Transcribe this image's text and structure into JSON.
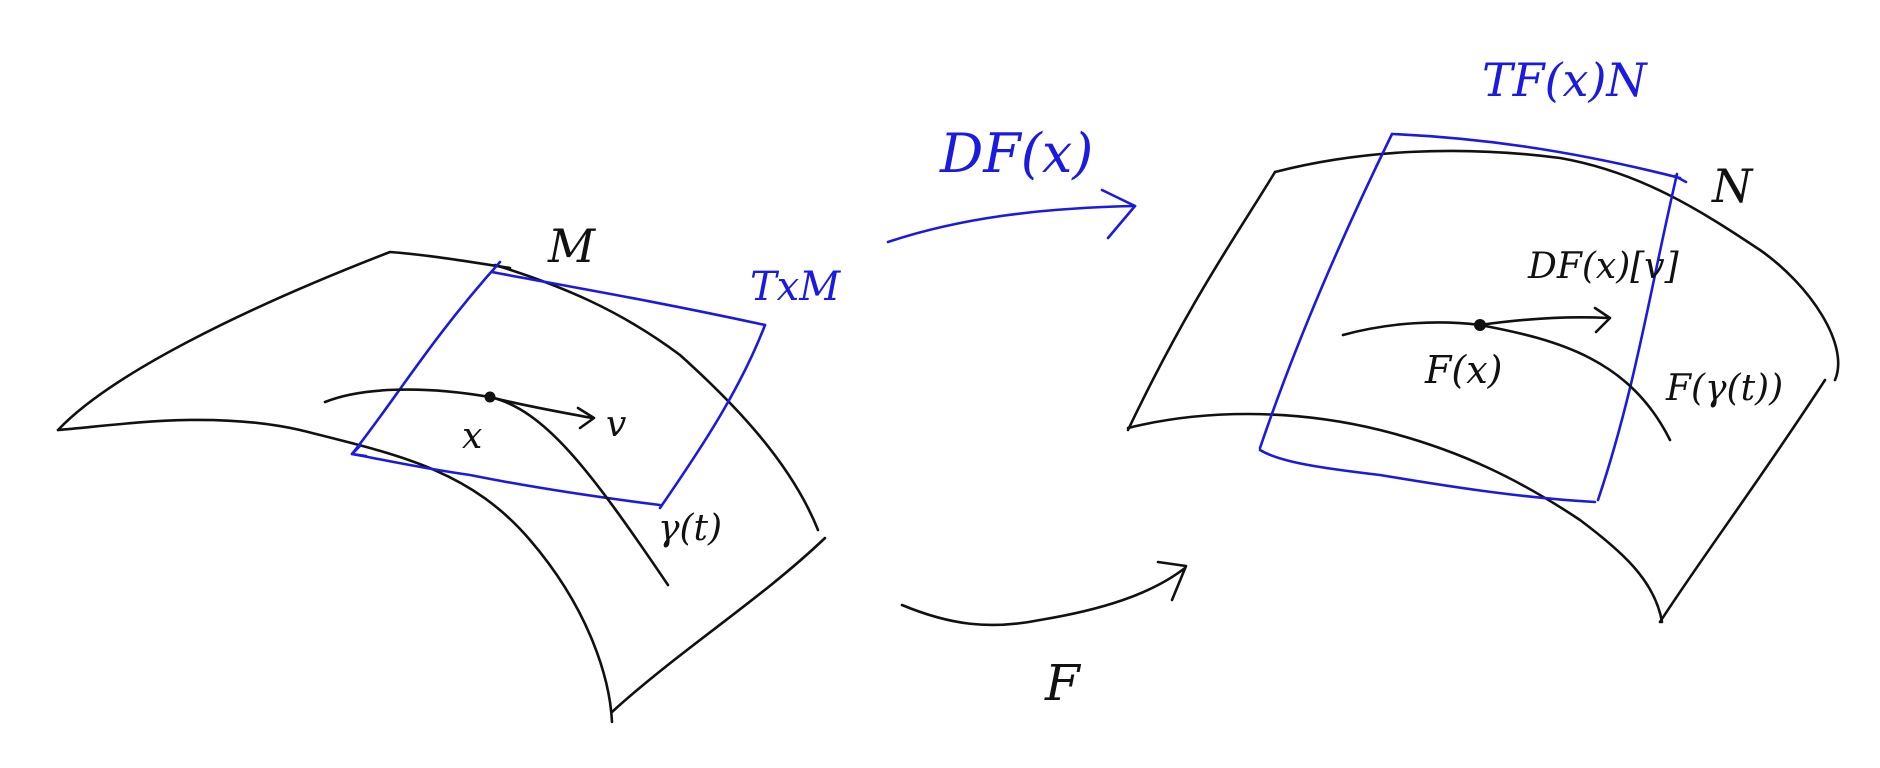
{
  "colors": {
    "ink": "#111111",
    "tangent": "#1a1ae0"
  },
  "labels": {
    "manifold_m": "M",
    "manifold_n": "N",
    "tangent_space_m": "TxM",
    "tangent_space_n": "TF(x)N",
    "point_x": "x",
    "vector_v": "v",
    "curve_gamma": "γ(t)",
    "differential_top": "DF(x)",
    "map_f": "F",
    "image_point": "F(x)",
    "image_vector": "DF(x)[v]",
    "image_curve": "F(γ(t))"
  }
}
